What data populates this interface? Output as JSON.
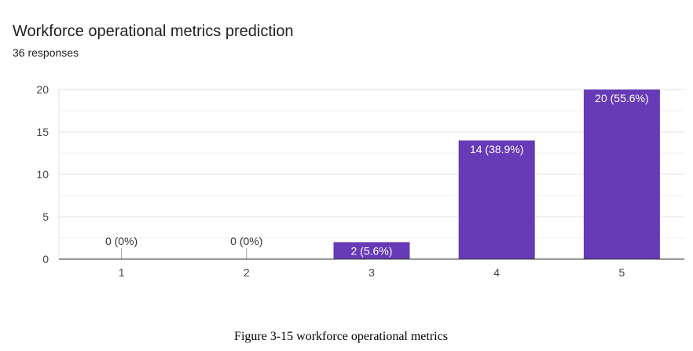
{
  "chart_data": {
    "type": "bar",
    "title": "Workforce operational metrics prediction",
    "subtitle": "36 responses",
    "categories": [
      "1",
      "2",
      "3",
      "4",
      "5"
    ],
    "values": [
      0,
      0,
      2,
      14,
      20
    ],
    "data_labels": [
      "0 (0%)",
      "0 (0%)",
      "2 (5.6%)",
      "14 (38.9%)",
      "20 (55.6%)"
    ],
    "ylim": [
      0,
      20
    ],
    "yticks": [
      0,
      5,
      10,
      15,
      20
    ],
    "ytick_labels": [
      "0",
      "5",
      "10",
      "15",
      "20"
    ],
    "grid": true,
    "bar_color": "#673ab7"
  },
  "caption": "Figure 3-15 workforce operational metrics"
}
